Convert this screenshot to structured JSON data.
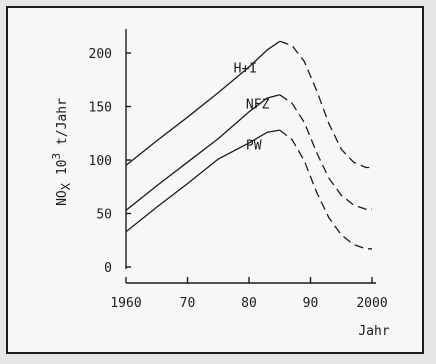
{
  "chart_data": {
    "type": "line",
    "xlabel": "Jahr",
    "ylabel": "NO_X 10^3 t/Jahr",
    "ylabel_parts": {
      "base": "NO",
      "sub": "X",
      "mid": " 10",
      "sup": "3",
      "tail": " t/Jahr"
    },
    "xlim": [
      1960,
      2000
    ],
    "ylim": [
      0,
      215
    ],
    "x_ticks": [
      1960,
      1970,
      1980,
      1990,
      2000
    ],
    "x_tick_labels": [
      "1960",
      "70",
      "80",
      "90",
      "2000"
    ],
    "y_ticks": [
      0,
      50,
      100,
      150,
      200
    ],
    "y_tick_labels": [
      "0",
      "50",
      "100",
      "150",
      "200"
    ],
    "grid": false,
    "series": [
      {
        "name": "H+I",
        "solid": [
          [
            1960,
            95
          ],
          [
            1965,
            118
          ],
          [
            1970,
            140
          ],
          [
            1975,
            163
          ],
          [
            1980,
            187
          ],
          [
            1983,
            203
          ],
          [
            1985,
            211
          ]
        ],
        "dashed": [
          [
            1985,
            211
          ],
          [
            1987,
            207
          ],
          [
            1989,
            192
          ],
          [
            1991,
            165
          ],
          [
            1993,
            134
          ],
          [
            1995,
            110
          ],
          [
            1997,
            98
          ],
          [
            1999,
            93
          ],
          [
            2000,
            93
          ]
        ]
      },
      {
        "name": "NFZ",
        "solid": [
          [
            1960,
            53
          ],
          [
            1965,
            76
          ],
          [
            1970,
            98
          ],
          [
            1975,
            120
          ],
          [
            1980,
            145
          ],
          [
            1983,
            158
          ],
          [
            1985,
            161
          ]
        ],
        "dashed": [
          [
            1985,
            161
          ],
          [
            1987,
            153
          ],
          [
            1989,
            135
          ],
          [
            1991,
            107
          ],
          [
            1993,
            83
          ],
          [
            1995,
            67
          ],
          [
            1997,
            58
          ],
          [
            1999,
            54
          ],
          [
            2000,
            54
          ]
        ]
      },
      {
        "name": "PW",
        "solid": [
          [
            1960,
            33
          ],
          [
            1965,
            56
          ],
          [
            1970,
            78
          ],
          [
            1975,
            101
          ],
          [
            1980,
            116
          ],
          [
            1983,
            126
          ],
          [
            1985,
            128
          ]
        ],
        "dashed": [
          [
            1985,
            128
          ],
          [
            1987,
            119
          ],
          [
            1989,
            99
          ],
          [
            1991,
            70
          ],
          [
            1993,
            46
          ],
          [
            1995,
            30
          ],
          [
            1997,
            21
          ],
          [
            1999,
            17
          ],
          [
            2000,
            17
          ]
        ]
      }
    ]
  }
}
